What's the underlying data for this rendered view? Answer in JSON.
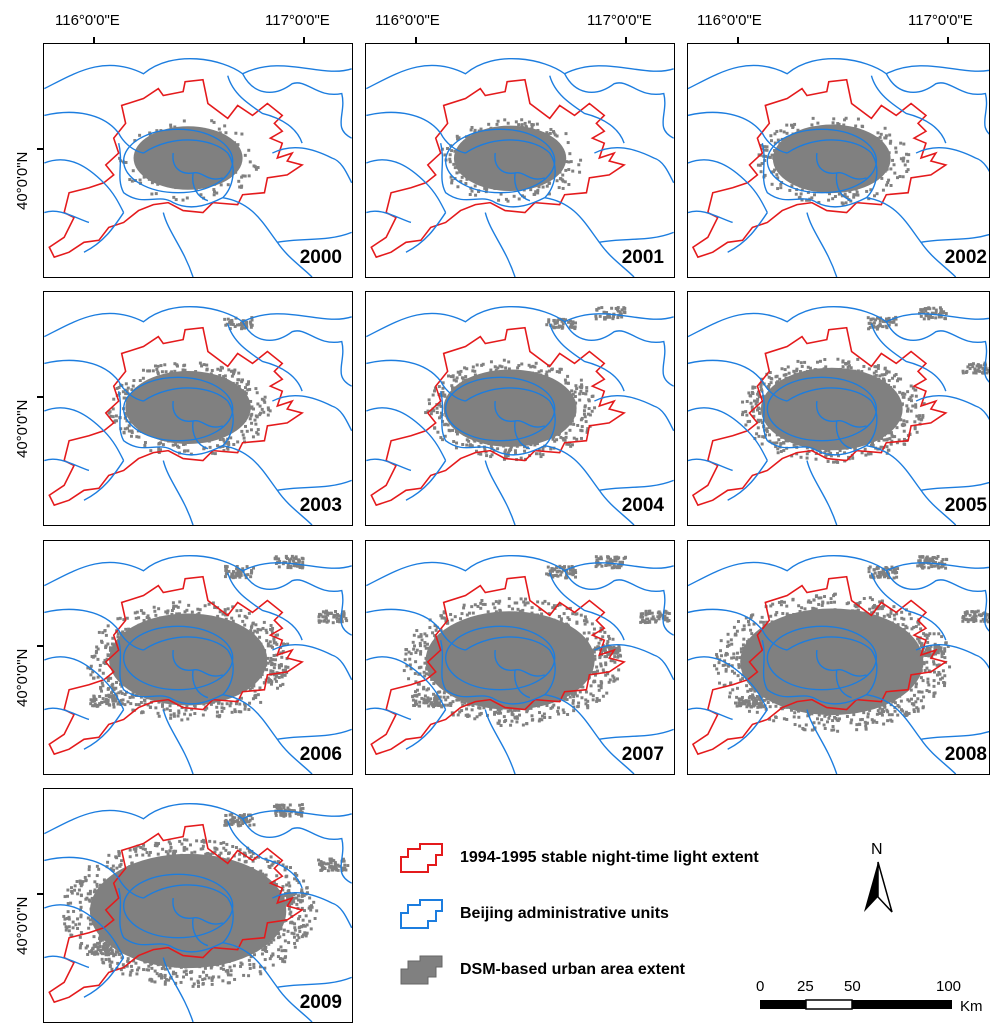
{
  "map": {
    "lon_labels": [
      "116°0'0\"E",
      "117°0'0\"E"
    ],
    "lat_label": "40°0'0\"N",
    "years": [
      "2000",
      "2001",
      "2002",
      "2003",
      "2004",
      "2005",
      "2006",
      "2007",
      "2008",
      "2009"
    ]
  },
  "legend": {
    "items": [
      {
        "label": "1994-1995 stable night-time light extent",
        "color": "#e41a1c"
      },
      {
        "label": "Beijing administrative units",
        "color": "#1c7ddf"
      },
      {
        "label": "DSM-based urban area extent",
        "color": "#808080"
      }
    ]
  },
  "north_arrow": {
    "label": "N"
  },
  "scale_bar": {
    "ticks": [
      "0",
      "25",
      "50",
      "100"
    ],
    "unit": "Km"
  },
  "colors": {
    "urban_fill": "#808080",
    "nightlight_outline": "#e41a1c",
    "admin_outline": "#1c7ddf"
  }
}
